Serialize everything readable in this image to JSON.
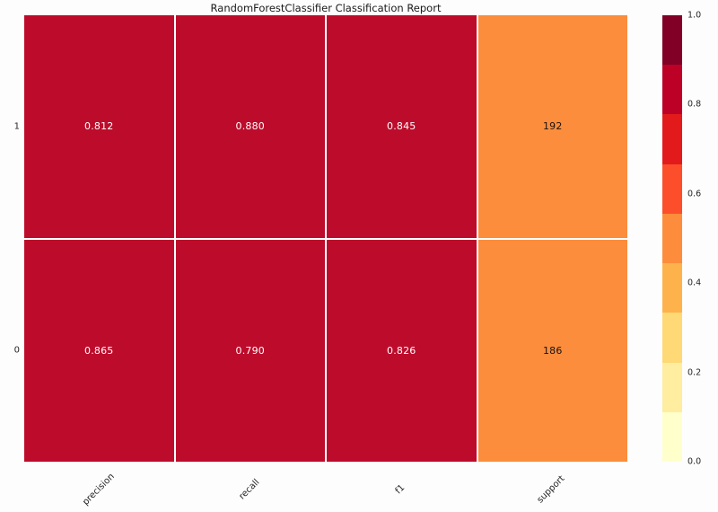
{
  "title": "RandomForestClassifier Classification Report",
  "heatmap": {
    "row_labels": [
      "1",
      "0"
    ],
    "column_labels": [
      "precision",
      "recall",
      "f1",
      "support"
    ],
    "rows": [
      {
        "label": "1",
        "cells": [
          {
            "text": "0.812",
            "bg": "#bd0c2b",
            "fg": "#ffffff"
          },
          {
            "text": "0.880",
            "bg": "#bd0c2b",
            "fg": "#ffffff"
          },
          {
            "text": "0.845",
            "bg": "#bd0c2b",
            "fg": "#ffffff"
          },
          {
            "text": "192",
            "bg": "#fb8d3c",
            "fg": "#1a1212"
          }
        ]
      },
      {
        "label": "0",
        "cells": [
          {
            "text": "0.865",
            "bg": "#bd0c2b",
            "fg": "#ffffff"
          },
          {
            "text": "0.790",
            "bg": "#bd0c2b",
            "fg": "#ffffff"
          },
          {
            "text": "0.826",
            "bg": "#bd0c2b",
            "fg": "#ffffff"
          },
          {
            "text": "186",
            "bg": "#fb8d3c",
            "fg": "#1a1212"
          }
        ]
      }
    ]
  },
  "colorbar": {
    "ticks": [
      "1.0",
      "0.8",
      "0.6",
      "0.4",
      "0.2",
      "0.0"
    ],
    "band_colors": [
      "#800026",
      "#bd0026",
      "#e31a1c",
      "#fc4e2a",
      "#fd8d3c",
      "#feb24c",
      "#fed976",
      "#ffeda0",
      "#ffffcc"
    ]
  },
  "chart_data": {
    "type": "heatmap",
    "title": "RandomForestClassifier Classification Report",
    "columns": [
      "precision",
      "recall",
      "f1",
      "support"
    ],
    "rows": [
      "1",
      "0"
    ],
    "values": [
      [
        0.812,
        0.88,
        0.845,
        192
      ],
      [
        0.865,
        0.79,
        0.826,
        186
      ]
    ],
    "cell_colors": [
      [
        "#bd0c2b",
        "#bd0c2b",
        "#bd0c2b",
        "#fb8d3c"
      ],
      [
        "#bd0c2b",
        "#bd0c2b",
        "#bd0c2b",
        "#fb8d3c"
      ]
    ],
    "colormap": "YlOrRd (9 discrete bands)",
    "colorbar_range": [
      0.0,
      1.0
    ],
    "colorbar_ticks": [
      1.0,
      0.8,
      0.6,
      0.4,
      0.2,
      0.0
    ],
    "grid": false,
    "legend_position": "right-colorbar",
    "x_tick_rotation_deg": 45
  }
}
